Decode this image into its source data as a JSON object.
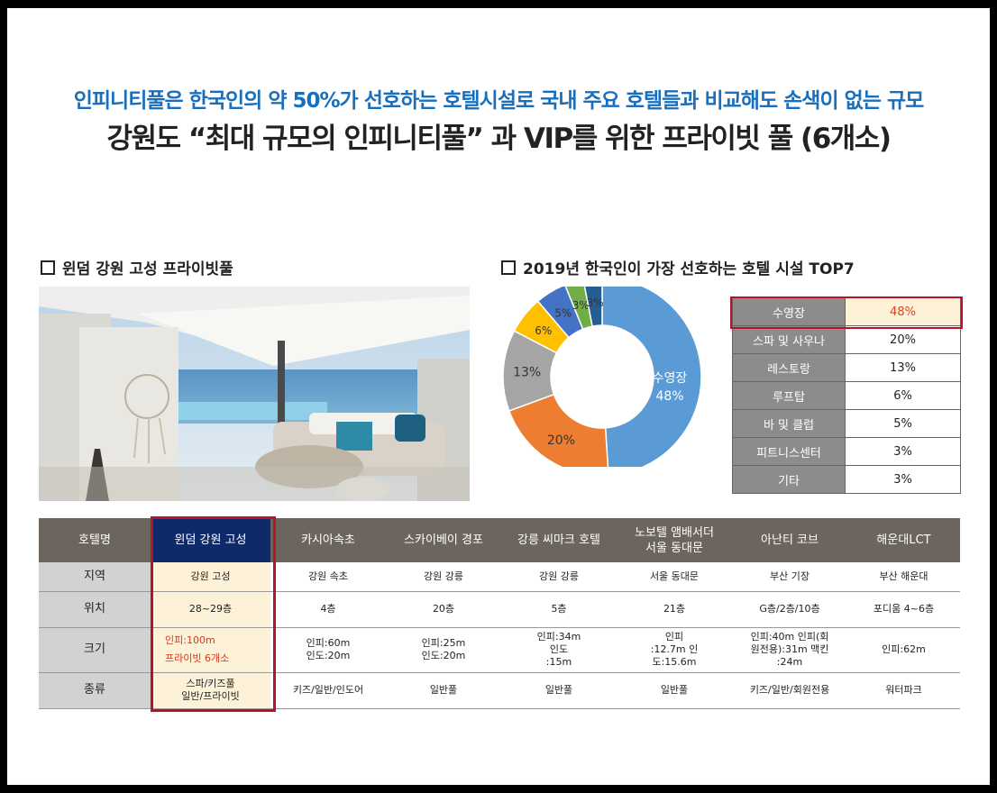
{
  "headline1": "인피니티풀은 한국인의 약 50%가 선호하는 호텔시설로 국내 주요 호텔들과 비교해도 손색이 없는 규모",
  "headline2": "강원도  “최대 규모의 인피니티풀” 과 VIP를 위한  프라이빗 풀 (6개소)",
  "section_left_title": "윈덤 강원 고성 프라이빗풀",
  "section_right_title": "2019년 한국인이 가장 선호하는 호텔 시설 TOP7",
  "chart_data": {
    "type": "pie",
    "title": "2019년 한국인이 가장 선호하는 호텔 시설 TOP7",
    "categories": [
      "수영장",
      "스파 및 사우나",
      "레스토랑",
      "루프탑",
      "바 및 클럽",
      "피트니스센터",
      "기타"
    ],
    "values": [
      48,
      20,
      13,
      6,
      5,
      3,
      3
    ],
    "labels": [
      "48%",
      "20%",
      "13%",
      "6%",
      "5%",
      "3%",
      "3%"
    ],
    "colors": [
      "#5b9bd5",
      "#ed7d31",
      "#a5a5a5",
      "#ffc000",
      "#4472c4",
      "#70ad47",
      "#255e91"
    ],
    "center_label_name": "수영장",
    "center_label_value": "48%"
  },
  "ranking_rows": [
    {
      "facility": "수영장",
      "pct": "48%"
    },
    {
      "facility": "스파 및 사우나",
      "pct": "20%"
    },
    {
      "facility": "레스토랑",
      "pct": "13%"
    },
    {
      "facility": "루프탑",
      "pct": "6%"
    },
    {
      "facility": "바 및 클럽",
      "pct": "5%"
    },
    {
      "facility": "피트니스센터",
      "pct": "3%"
    },
    {
      "facility": "기타",
      "pct": "3%"
    }
  ],
  "comparison": {
    "header_label": "호텔명",
    "hotels": [
      "윈덤 강원 고성",
      "카시아속초",
      "스카이베이 경포",
      "강릉 씨마크 호텔",
      "노보텔 앰배서더\n서울 동대문",
      "아난티 코브",
      "해운대LCT"
    ],
    "row_labels": [
      "지역",
      "위치",
      "크기",
      "종류"
    ],
    "region": [
      "강원 고성",
      "강원 속초",
      "강원 강릉",
      "강원 강릉",
      "서울 동대문",
      "부산 기장",
      "부산 해운대"
    ],
    "floor": [
      "28~29층",
      "4층",
      "20층",
      "5층",
      "21층",
      "G층/2층/10층",
      "포디움 4~6층"
    ],
    "size": [
      "인피:100m\n프라이빗 6개소",
      "인피:60m\n인도:20m",
      "인피:25m\n인도:20m",
      "인피:34m\n인도\n:15m",
      "인피\n:12.7m  인\n도:15.6m",
      "인피:40m  인피(회\n원전용):31m  맥킨\n:24m",
      "인피:62m"
    ],
    "type": [
      "스파/키즈풀\n일반/프라이빗",
      "키즈/일반/인도어",
      "일반풀",
      "일반풀",
      "일반풀",
      "키즈/일반/회원전용",
      "워터파크"
    ]
  }
}
